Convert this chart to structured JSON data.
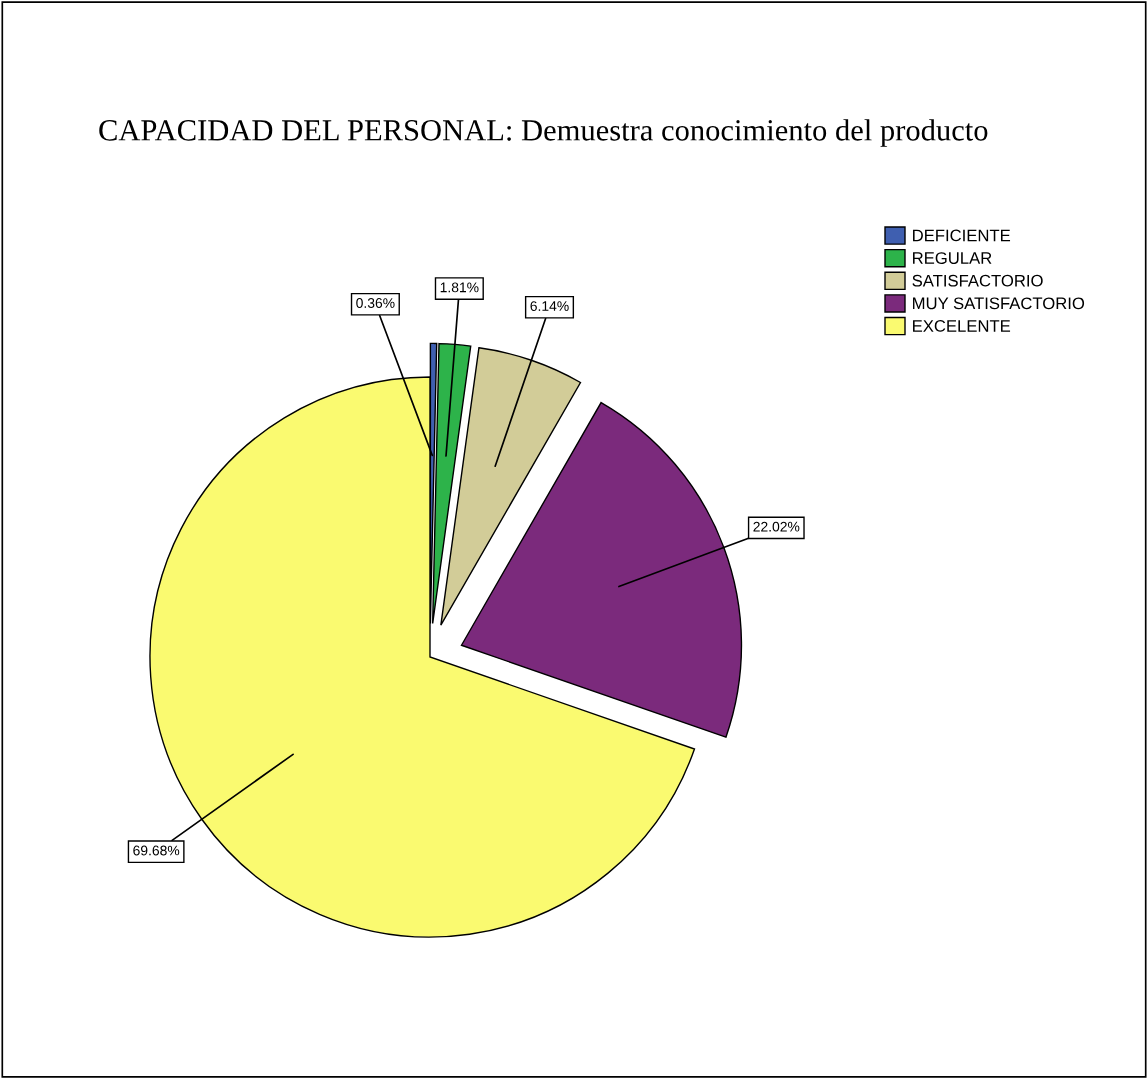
{
  "chart_data": {
    "type": "pie",
    "title": "CAPACIDAD DEL PERSONAL: Demuestra conocimiento del producto",
    "categories": [
      "DEFICIENTE",
      "REGULAR",
      "SATISFACTORIO",
      "MUY SATISFACTORIO",
      "EXCELENTE"
    ],
    "values": [
      0.36,
      1.81,
      6.14,
      22.02,
      69.68
    ],
    "value_labels": [
      "0.36%",
      "1.81%",
      "6.14%",
      "22.02%",
      "69.68%"
    ],
    "colors": [
      "#3f5fb0",
      "#2db34a",
      "#d2cc98",
      "#7b2a7c",
      "#fafa70"
    ],
    "legend": "top right"
  }
}
